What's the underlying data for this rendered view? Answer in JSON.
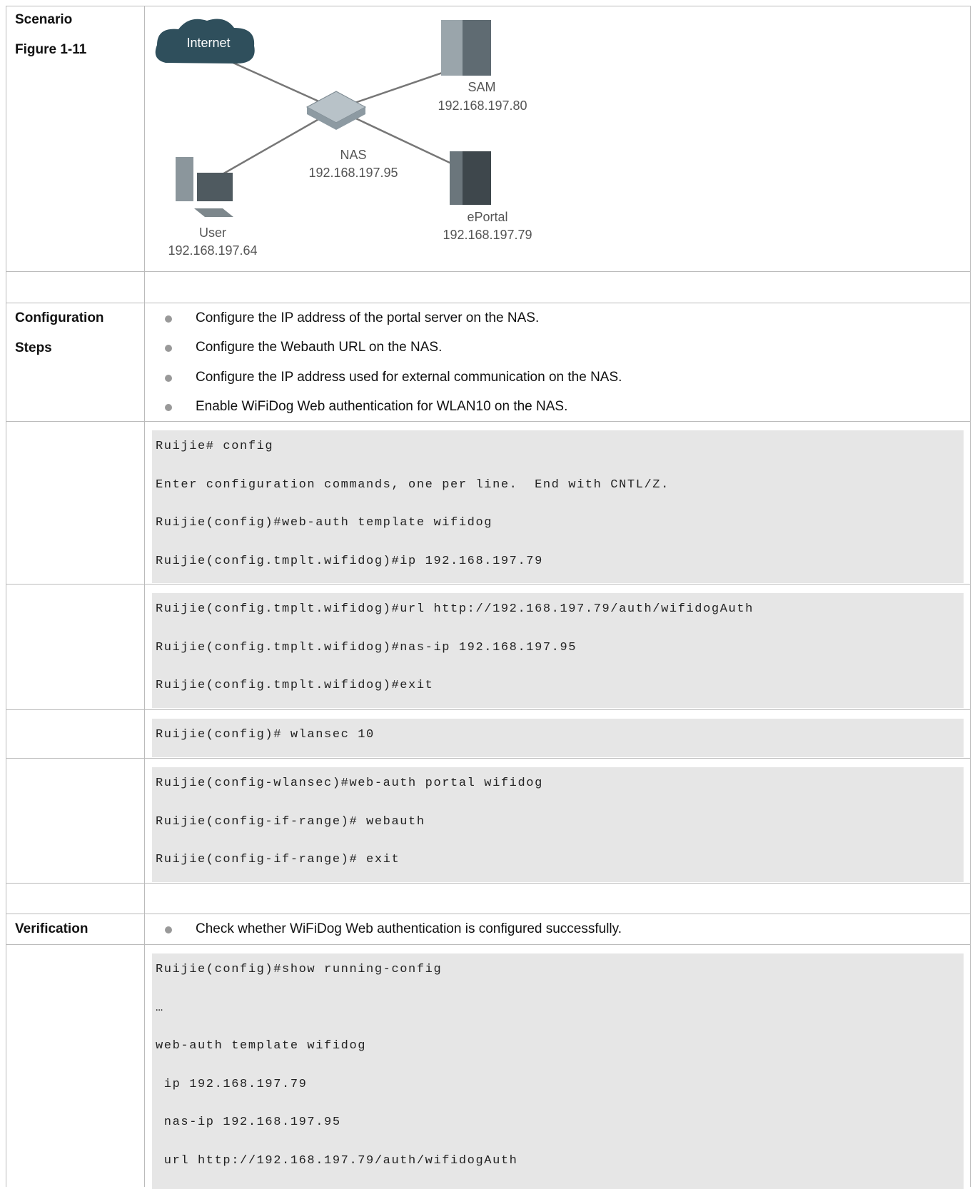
{
  "scenario": {
    "label": "Scenario",
    "figure_label": "Figure 1-11",
    "diagram": {
      "nodes": [
        {
          "label": "Internet"
        },
        {
          "label": "SAM",
          "ip": "192.168.197.80"
        },
        {
          "label": "NAS",
          "ip": "192.168.197.95"
        },
        {
          "label": "ePortal",
          "ip": "192.168.197.79"
        },
        {
          "label": "User",
          "ip": "192.168.197.64"
        }
      ]
    }
  },
  "configuration": {
    "label": [
      "Configuration",
      "Steps"
    ],
    "bullets": [
      "Configure the IP address of the portal server on the NAS.",
      "Configure the Webauth URL on the NAS.",
      "Configure the IP address used for external communication on the NAS.",
      "Enable WiFiDog Web authentication for WLAN10 on the NAS."
    ],
    "code_blocks": [
      [
        "Ruijie# config",
        "Enter configuration commands, one per line.  End with CNTL/Z.",
        "Ruijie(config)#web-auth template wifidog",
        "Ruijie(config.tmplt.wifidog)#ip 192.168.197.79"
      ],
      [
        "Ruijie(config.tmplt.wifidog)#url http://192.168.197.79/auth/wifidogAuth",
        "Ruijie(config.tmplt.wifidog)#nas-ip 192.168.197.95",
        "Ruijie(config.tmplt.wifidog)#exit"
      ],
      [
        "Ruijie(config)# wlansec 10"
      ],
      [
        "Ruijie(config-wlansec)#web-auth portal wifidog",
        "Ruijie(config-if-range)# webauth",
        "Ruijie(config-if-range)# exit"
      ]
    ]
  },
  "verification": {
    "label": "Verification",
    "bullets": [
      "Check whether WiFiDog Web authentication is configured successfully."
    ],
    "code": [
      "Ruijie(config)#show running-config",
      "…",
      "web-auth template wifidog",
      " ip 192.168.197.79",
      " nas-ip 192.168.197.95",
      " url http://192.168.197.79/auth/wifidogAuth"
    ]
  }
}
